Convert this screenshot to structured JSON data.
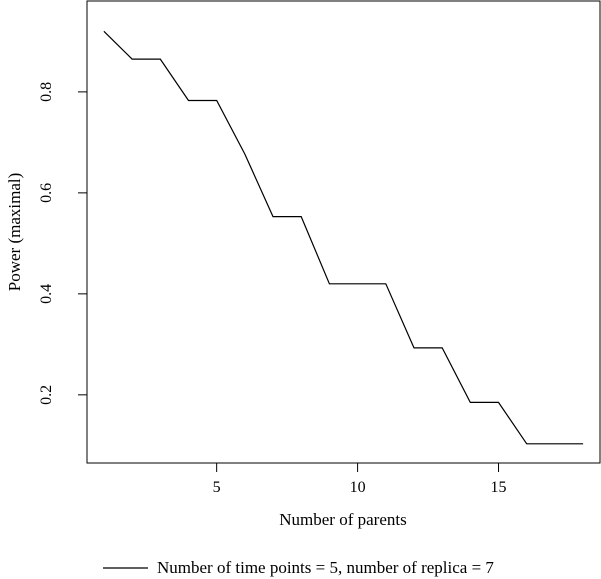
{
  "chart_data": {
    "type": "line",
    "xlabel": "Number of parents",
    "ylabel": "Power (maximal)",
    "xlim": [
      0.4,
      18.6
    ],
    "ylim": [
      0.065,
      0.98
    ],
    "xticks": [
      5,
      10,
      15
    ],
    "yticks": [
      0.2,
      0.4,
      0.6,
      0.8
    ],
    "x_tick_labels": [
      "5",
      "10",
      "15"
    ],
    "y_tick_labels": [
      "0.2",
      "0.4",
      "0.6",
      "0.8"
    ],
    "legend_position": "bottom",
    "series": [
      {
        "name": "Number of time points = 5, number of replica = 7",
        "color": "#000000",
        "points": [
          [
            1,
            0.92
          ],
          [
            2,
            0.865
          ],
          [
            3,
            0.865
          ],
          [
            4,
            0.783
          ],
          [
            5,
            0.783
          ],
          [
            6,
            0.677
          ],
          [
            7,
            0.553
          ],
          [
            8,
            0.553
          ],
          [
            9,
            0.42
          ],
          [
            10,
            0.42
          ],
          [
            11,
            0.42
          ],
          [
            12,
            0.293
          ],
          [
            13,
            0.293
          ],
          [
            14,
            0.185
          ],
          [
            15,
            0.185
          ],
          [
            16,
            0.103
          ],
          [
            17,
            0.103
          ],
          [
            18,
            0.103
          ]
        ]
      }
    ]
  }
}
